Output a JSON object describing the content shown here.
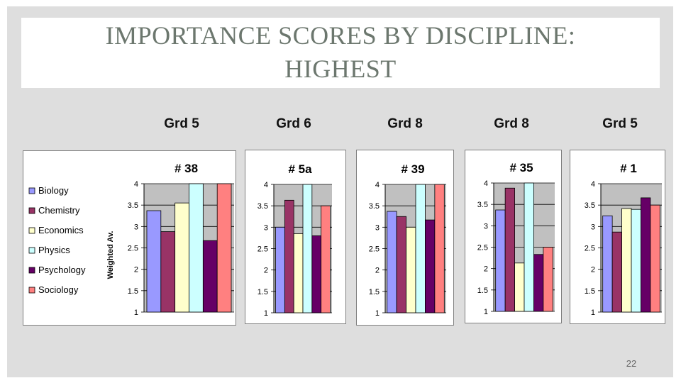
{
  "slide": {
    "title_line1": "Importance Scores by Discipline:",
    "title_line2": "Highest",
    "page_number": "22"
  },
  "grades": [
    "Grd 5",
    "Grd 6",
    "Grd 8",
    "Grd 8",
    "Grd 5"
  ],
  "legend": [
    "Biology",
    "Chemistry",
    "Economics",
    "Physics",
    "Psychology",
    "Sociology"
  ],
  "colors": {
    "Biology": "#9999ff",
    "Chemistry": "#993366",
    "Economics": "#ffffcc",
    "Physics": "#ccffff",
    "Psychology": "#660066",
    "Sociology": "#ff8080"
  },
  "chart_data": [
    {
      "type": "bar",
      "title": "# 38",
      "ylabel": "Weighted Av.",
      "ylim": [
        1,
        4
      ],
      "yticks": [
        "1",
        "1.5",
        "2",
        "2.5",
        "3",
        "3.5",
        "4"
      ],
      "categories": [
        "Biology",
        "Chemistry",
        "Economics",
        "Physics",
        "Psychology",
        "Sociology"
      ],
      "values": [
        3.37,
        2.88,
        3.55,
        4.0,
        2.67,
        4.0
      ]
    },
    {
      "type": "bar",
      "title": "# 5a",
      "ylabel": "",
      "ylim": [
        1,
        4
      ],
      "yticks": [
        "1",
        "1.5",
        "2",
        "2.5",
        "3",
        "3.5",
        "4"
      ],
      "categories": [
        "Biology",
        "Chemistry",
        "Economics",
        "Physics",
        "Psychology",
        "Sociology"
      ],
      "values": [
        3.0,
        3.63,
        2.85,
        4.0,
        2.8,
        3.5
      ]
    },
    {
      "type": "bar",
      "title": "# 39",
      "ylabel": "",
      "ylim": [
        1,
        4
      ],
      "yticks": [
        "1",
        "1.5",
        "2",
        "2.5",
        "3",
        "3.5",
        "4"
      ],
      "categories": [
        "Biology",
        "Chemistry",
        "Economics",
        "Physics",
        "Psychology",
        "Sociology"
      ],
      "values": [
        3.37,
        3.25,
        3.0,
        4.0,
        3.17,
        4.0
      ]
    },
    {
      "type": "bar",
      "title": "# 35",
      "ylabel": "",
      "ylim": [
        1,
        4
      ],
      "yticks": [
        "1",
        "1.5",
        "2",
        "2.5",
        "3",
        "3.5",
        "4"
      ],
      "categories": [
        "Biology",
        "Chemistry",
        "Economics",
        "Physics",
        "Psychology",
        "Sociology"
      ],
      "values": [
        3.37,
        3.88,
        2.13,
        4.0,
        2.33,
        2.5
      ]
    },
    {
      "type": "bar",
      "title": "# 1",
      "ylabel": "",
      "ylim": [
        1,
        4
      ],
      "yticks": [
        "1",
        "1.5",
        "2",
        "2.5",
        "3",
        "3.5",
        "4"
      ],
      "categories": [
        "Biology",
        "Chemistry",
        "Economics",
        "Physics",
        "Psychology",
        "Sociology"
      ],
      "values": [
        3.25,
        2.87,
        3.42,
        3.4,
        3.67,
        3.5
      ]
    }
  ]
}
